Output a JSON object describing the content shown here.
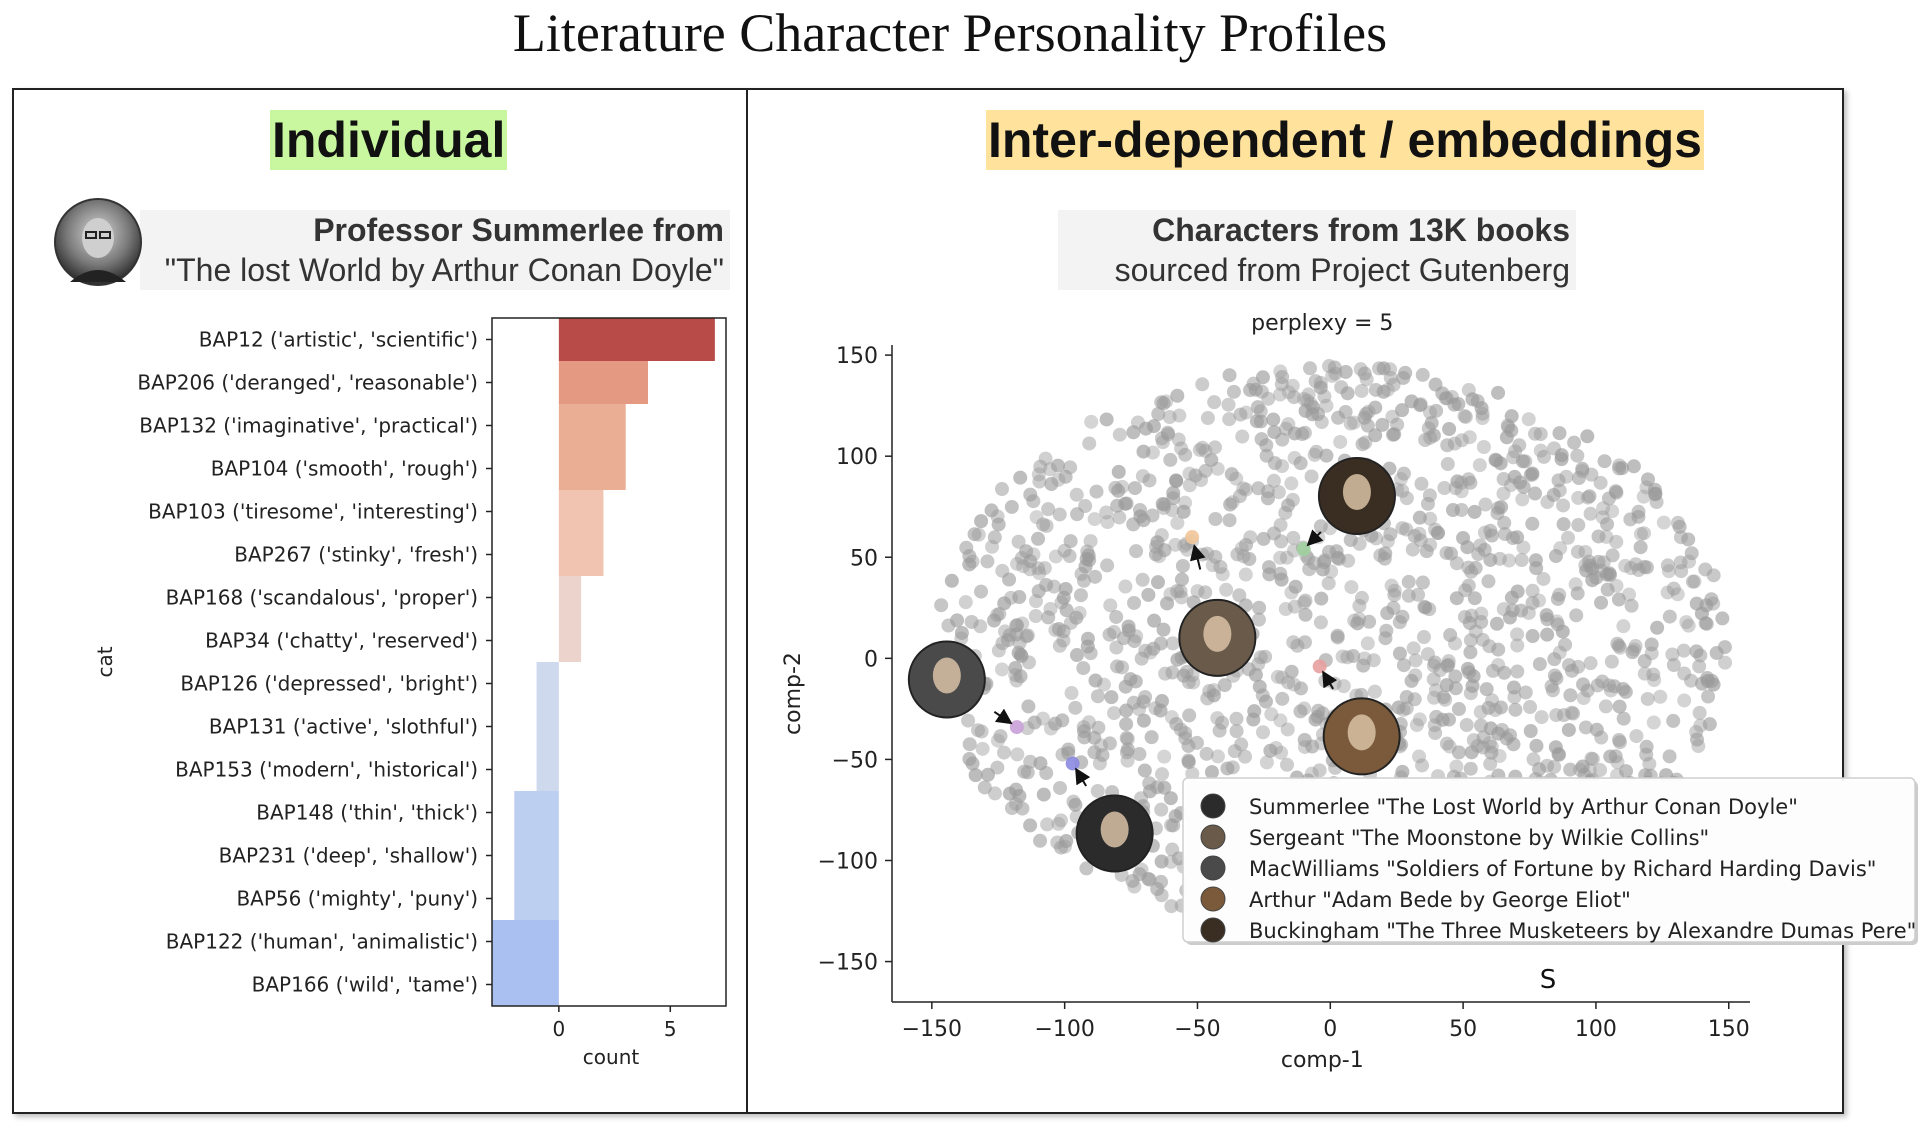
{
  "title": "Literature Character Personality Profiles",
  "left_panel": {
    "title": "Individual",
    "subtitle_bold": "Professor Summerlee from",
    "subtitle_normal": "\"The lost World by Arthur Conan Doyle\""
  },
  "right_panel": {
    "title": "Inter-dependent / embeddings",
    "subtitle_bold": "Characters from 13K books",
    "subtitle_normal": "sourced from Project Gutenberg",
    "stray_label": "S"
  },
  "chart_data": [
    {
      "type": "bar",
      "orientation": "horizontal",
      "xlabel": "count",
      "ylabel": "cat",
      "xlim": [
        -3,
        7.5
      ],
      "xticks": [
        0,
        5
      ],
      "categories": [
        "BAP12 ('artistic', 'scientific')",
        "BAP206 ('deranged', 'reasonable')",
        "BAP132 ('imaginative', 'practical')",
        "BAP104 ('smooth', 'rough')",
        "BAP103 ('tiresome', 'interesting')",
        "BAP267 ('stinky', 'fresh')",
        "BAP168 ('scandalous', 'proper')",
        "BAP34 ('chatty', 'reserved')",
        "BAP126 ('depressed', 'bright')",
        "BAP131 ('active', 'slothful')",
        "BAP153 ('modern', 'historical')",
        "BAP148 ('thin', 'thick')",
        "BAP231 ('deep', 'shallow')",
        "BAP56 ('mighty', 'puny')",
        "BAP122 ('human', 'animalistic')",
        "BAP166 ('wild', 'tame')"
      ],
      "values": [
        7,
        4,
        3,
        3,
        2,
        2,
        1,
        1,
        -1,
        -1,
        -1,
        -2,
        -2,
        -2,
        -3,
        -3
      ],
      "colors": [
        "#b84a48",
        "#e49a82",
        "#eaae94",
        "#eaae94",
        "#f0c4b0",
        "#f0c4b0",
        "#ecd4cc",
        "#ecd4cc",
        "#cfd9ee",
        "#cfd9ee",
        "#cfd9ee",
        "#bccff0",
        "#bccff0",
        "#bccff0",
        "#a9c0f1",
        "#a9c0f1"
      ]
    },
    {
      "type": "scatter",
      "title": "perplexy = 5",
      "xlabel": "comp-1",
      "ylabel": "comp-2",
      "xlim": [
        -165,
        158
      ],
      "ylim": [
        -170,
        155
      ],
      "xticks": [
        -150,
        -100,
        -50,
        0,
        50,
        100,
        150
      ],
      "yticks": [
        150,
        100,
        50,
        0,
        -50,
        -100,
        -150
      ],
      "point_color": "#9a9a9a",
      "point_count_approx": 1500,
      "highlighted": [
        {
          "name": "Summerlee \"The Lost World by Arthur Conan Doyle\"",
          "x": -97,
          "y": -52,
          "color": "#8a8ae0",
          "tone": "#2b2b2b"
        },
        {
          "name": "Sergeant \"The Moonstone by Wilkie Collins\"",
          "x": -52,
          "y": 60,
          "color": "#f2c69a",
          "tone": "#6a5a4a"
        },
        {
          "name": "MacWilliams \"Soldiers of Fortune by Richard Harding Davis\"",
          "x": -118,
          "y": -34,
          "color": "#c8a0d8",
          "tone": "#4a4a4a"
        },
        {
          "name": "Arthur \"Adam Bede by George Eliot\"",
          "x": -4,
          "y": -4,
          "color": "#e8a0a0",
          "tone": "#7a5a3a"
        },
        {
          "name": "Buckingham \"The Three Musketeers by Alexandre Dumas Pere\"",
          "x": -10,
          "y": 54,
          "color": "#a0d0a0",
          "tone": "#3a2e22"
        }
      ]
    }
  ]
}
